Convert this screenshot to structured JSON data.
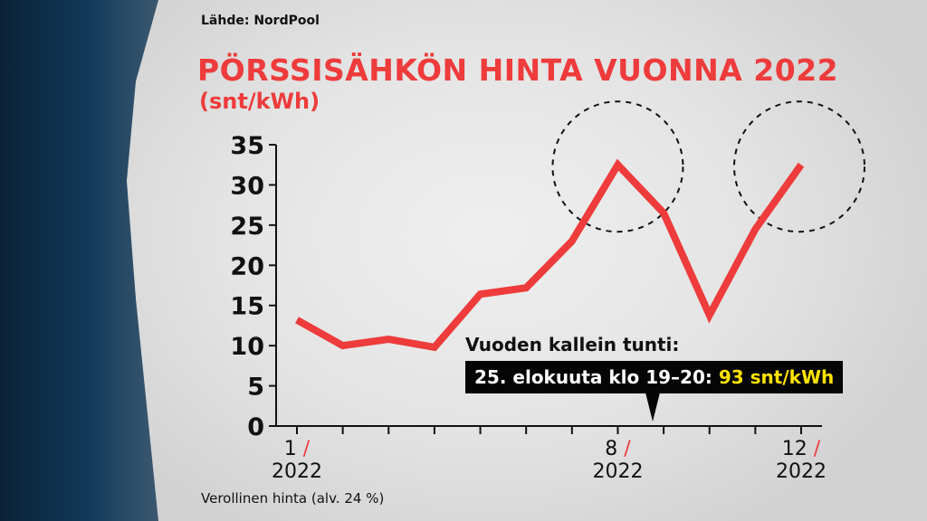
{
  "source": "Lähde: NordPool",
  "title": "PÖRSSISÄHKÖN HINTA VUONNA 2022",
  "unit": "(snt/kWh)",
  "footnote": "Verollinen hinta (alv. 24 %)",
  "annotation": {
    "title": "Vuoden kallein tunti:",
    "text": "25. elokuuta klo 19–20: ",
    "value": "93 snt/kWh"
  },
  "colors": {
    "line": "#ee3b3b",
    "accent": "#ffe300",
    "title": "#ee3b3b"
  },
  "chart_data": {
    "type": "line",
    "x": [
      1,
      2,
      3,
      4,
      5,
      6,
      7,
      8,
      9,
      10,
      11,
      12
    ],
    "values": [
      13.2,
      10.0,
      10.8,
      9.8,
      16.4,
      17.2,
      23.0,
      32.5,
      26.5,
      13.8,
      24.5,
      32.5
    ],
    "ylim": [
      0,
      35
    ],
    "yticks": [
      0,
      5,
      10,
      15,
      20,
      25,
      30,
      35
    ],
    "xtick_labels": [
      {
        "month": "1",
        "sep": "/",
        "year": "2022"
      },
      {
        "month": "8",
        "sep": "/",
        "year": "2022"
      },
      {
        "month": "12",
        "sep": "/",
        "year": "2022"
      }
    ],
    "highlighted_months": [
      8,
      12
    ],
    "grid": false
  }
}
